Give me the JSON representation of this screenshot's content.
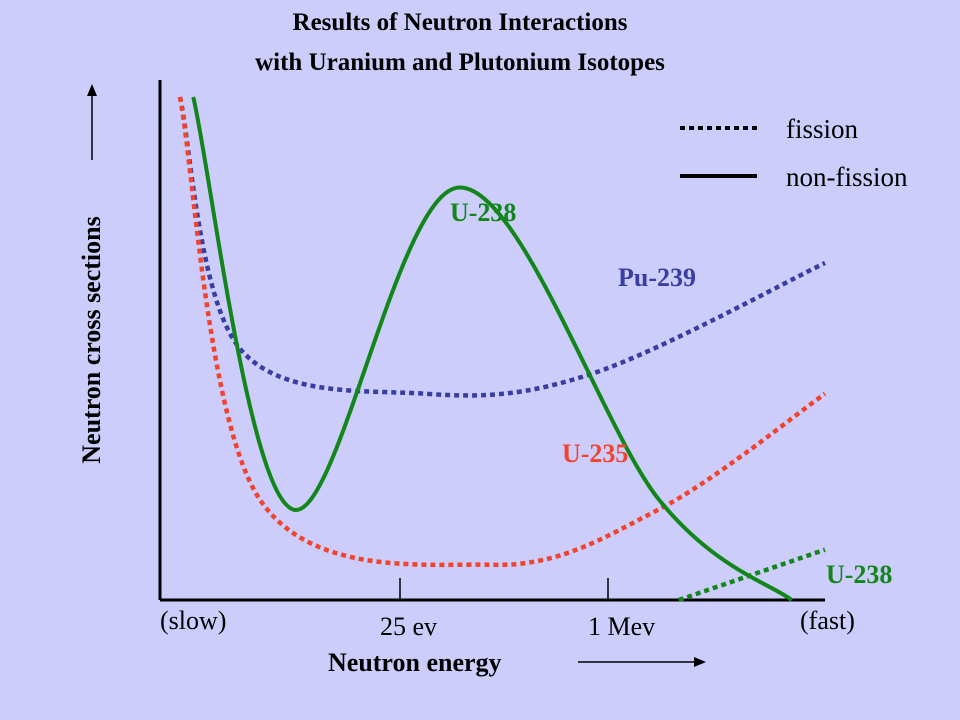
{
  "chart_data": {
    "type": "line",
    "title": "Results of Neutron Interactions",
    "subtitle": "with Uranium and Plutonium Isotopes",
    "xlabel": "Neutron energy",
    "ylabel": "Neutron cross sections",
    "x_tick_labels": [
      "(slow)",
      "25 ev",
      "1 Mev",
      "(fast)"
    ],
    "legend": [
      {
        "label": "fission",
        "style": "dotted"
      },
      {
        "label": "non-fission",
        "style": "solid"
      }
    ],
    "series": [
      {
        "name": "U-238",
        "kind": "non-fission",
        "color": "#13861b",
        "style": "solid",
        "x": [
          0.05,
          0.2,
          0.45,
          0.75,
          0.95
        ],
        "y": [
          1.0,
          0.18,
          0.82,
          0.2,
          0.0
        ]
      },
      {
        "name": "Pu-239",
        "kind": "fission",
        "color": "#3a3ea0",
        "style": "dotted",
        "x": [
          0.03,
          0.12,
          0.4,
          0.65,
          1.0
        ],
        "y": [
          1.0,
          0.5,
          0.41,
          0.45,
          0.67
        ]
      },
      {
        "name": "U-235",
        "kind": "fission",
        "color": "#f2432f",
        "style": "dotted",
        "x": [
          0.03,
          0.15,
          0.5,
          0.75,
          1.0
        ],
        "y": [
          1.0,
          0.2,
          0.07,
          0.18,
          0.41
        ]
      },
      {
        "name": "U-238",
        "kind": "fission",
        "color": "#13861b",
        "style": "dotted",
        "x": [
          0.78,
          1.0
        ],
        "y": [
          0.0,
          0.1
        ]
      }
    ],
    "grid": false,
    "legend_position": "top-right"
  }
}
